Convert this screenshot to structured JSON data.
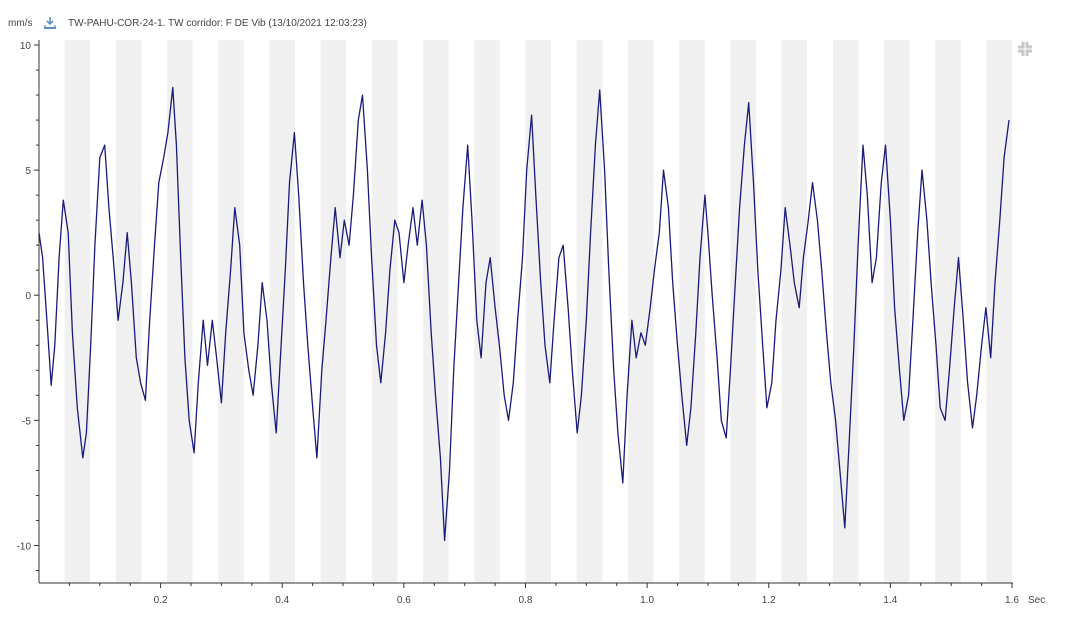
{
  "header": {
    "unit_label": "mm/s",
    "download_icon": "download-icon",
    "expand_icon": "expand-icon",
    "title": "TW-PAHU-COR-24-1.  TW corridor: F DE Vib (13/10/2021 12:03:23)"
  },
  "chart_data": {
    "type": "line",
    "title": "TW-PAHU-COR-24-1.  TW corridor: F DE Vib (13/10/2021 12:03:23)",
    "xlabel": "Sec",
    "ylabel": "mm/s",
    "xlim": [
      0,
      1.6
    ],
    "ylim": [
      -11.5,
      10.2
    ],
    "x_ticks": [
      0.2,
      0.4,
      0.6,
      0.8,
      1.0,
      1.2,
      1.4,
      1.6
    ],
    "x_tick_labels": [
      "0.2",
      "0.4",
      "0.6",
      "0.8",
      "1.0",
      "1.2",
      "1.4",
      "1.6"
    ],
    "y_ticks": [
      10,
      5,
      0,
      -5,
      -10
    ],
    "y_tick_labels": [
      "10",
      "5",
      "0",
      "-5",
      "-10"
    ],
    "line_color": "#1a1a7a",
    "band_color": "#f0f0f0",
    "grid": false,
    "background_bands": true,
    "series": [
      {
        "name": "",
        "points": [
          [
            0.0,
            2.5
          ],
          [
            0.006,
            1.5
          ],
          [
            0.013,
            -1.0
          ],
          [
            0.02,
            -3.6
          ],
          [
            0.026,
            -2.0
          ],
          [
            0.033,
            1.5
          ],
          [
            0.04,
            3.8
          ],
          [
            0.048,
            2.5
          ],
          [
            0.055,
            -1.5
          ],
          [
            0.063,
            -4.5
          ],
          [
            0.072,
            -6.5
          ],
          [
            0.078,
            -5.5
          ],
          [
            0.085,
            -2.0
          ],
          [
            0.092,
            2.0
          ],
          [
            0.1,
            5.5
          ],
          [
            0.108,
            6.0
          ],
          [
            0.115,
            3.5
          ],
          [
            0.122,
            1.5
          ],
          [
            0.13,
            -1.0
          ],
          [
            0.138,
            0.5
          ],
          [
            0.145,
            2.5
          ],
          [
            0.152,
            0.5
          ],
          [
            0.16,
            -2.5
          ],
          [
            0.167,
            -3.5
          ],
          [
            0.175,
            -4.2
          ],
          [
            0.182,
            -1.0
          ],
          [
            0.19,
            2.0
          ],
          [
            0.197,
            4.5
          ],
          [
            0.205,
            5.5
          ],
          [
            0.212,
            6.5
          ],
          [
            0.22,
            8.3
          ],
          [
            0.226,
            6.0
          ],
          [
            0.233,
            1.5
          ],
          [
            0.24,
            -2.5
          ],
          [
            0.247,
            -5.0
          ],
          [
            0.255,
            -6.3
          ],
          [
            0.262,
            -3.5
          ],
          [
            0.27,
            -1.0
          ],
          [
            0.277,
            -2.8
          ],
          [
            0.285,
            -1.0
          ],
          [
            0.292,
            -2.5
          ],
          [
            0.3,
            -4.3
          ],
          [
            0.307,
            -1.5
          ],
          [
            0.315,
            1.0
          ],
          [
            0.322,
            3.5
          ],
          [
            0.33,
            2.0
          ],
          [
            0.337,
            -1.5
          ],
          [
            0.345,
            -3.0
          ],
          [
            0.352,
            -4.0
          ],
          [
            0.36,
            -2.0
          ],
          [
            0.367,
            0.5
          ],
          [
            0.375,
            -1.0
          ],
          [
            0.382,
            -3.5
          ],
          [
            0.39,
            -5.5
          ],
          [
            0.397,
            -2.5
          ],
          [
            0.405,
            1.0
          ],
          [
            0.412,
            4.5
          ],
          [
            0.42,
            6.5
          ],
          [
            0.427,
            4.0
          ],
          [
            0.435,
            0.5
          ],
          [
            0.442,
            -2.0
          ],
          [
            0.45,
            -4.5
          ],
          [
            0.457,
            -6.5
          ],
          [
            0.465,
            -3.0
          ],
          [
            0.472,
            -1.0
          ],
          [
            0.48,
            1.5
          ],
          [
            0.487,
            3.5
          ],
          [
            0.495,
            1.5
          ],
          [
            0.502,
            3.0
          ],
          [
            0.51,
            2.0
          ],
          [
            0.517,
            4.0
          ],
          [
            0.525,
            7.0
          ],
          [
            0.532,
            8.0
          ],
          [
            0.54,
            5.0
          ],
          [
            0.547,
            1.5
          ],
          [
            0.555,
            -2.0
          ],
          [
            0.562,
            -3.5
          ],
          [
            0.57,
            -1.5
          ],
          [
            0.577,
            1.0
          ],
          [
            0.585,
            3.0
          ],
          [
            0.592,
            2.5
          ],
          [
            0.6,
            0.5
          ],
          [
            0.607,
            2.0
          ],
          [
            0.615,
            3.5
          ],
          [
            0.622,
            2.0
          ],
          [
            0.63,
            3.8
          ],
          [
            0.637,
            2.0
          ],
          [
            0.645,
            -1.5
          ],
          [
            0.652,
            -4.0
          ],
          [
            0.66,
            -6.5
          ],
          [
            0.667,
            -9.8
          ],
          [
            0.675,
            -7.0
          ],
          [
            0.682,
            -3.0
          ],
          [
            0.69,
            0.5
          ],
          [
            0.697,
            3.5
          ],
          [
            0.705,
            6.0
          ],
          [
            0.712,
            3.0
          ],
          [
            0.72,
            -1.0
          ],
          [
            0.727,
            -2.5
          ],
          [
            0.735,
            0.5
          ],
          [
            0.742,
            1.5
          ],
          [
            0.75,
            -0.5
          ],
          [
            0.757,
            -2.0
          ],
          [
            0.765,
            -4.0
          ],
          [
            0.772,
            -5.0
          ],
          [
            0.78,
            -3.5
          ],
          [
            0.787,
            -1.0
          ],
          [
            0.795,
            1.5
          ],
          [
            0.802,
            5.0
          ],
          [
            0.81,
            7.2
          ],
          [
            0.817,
            4.0
          ],
          [
            0.825,
            0.5
          ],
          [
            0.832,
            -2.0
          ],
          [
            0.84,
            -3.5
          ],
          [
            0.847,
            -1.0
          ],
          [
            0.855,
            1.5
          ],
          [
            0.862,
            2.0
          ],
          [
            0.87,
            -0.5
          ],
          [
            0.877,
            -3.0
          ],
          [
            0.885,
            -5.5
          ],
          [
            0.892,
            -4.0
          ],
          [
            0.9,
            -1.0
          ],
          [
            0.907,
            2.5
          ],
          [
            0.915,
            6.0
          ],
          [
            0.922,
            8.2
          ],
          [
            0.93,
            5.0
          ],
          [
            0.937,
            1.0
          ],
          [
            0.945,
            -3.0
          ],
          [
            0.952,
            -5.5
          ],
          [
            0.96,
            -7.5
          ],
          [
            0.967,
            -4.0
          ],
          [
            0.975,
            -1.0
          ],
          [
            0.982,
            -2.5
          ],
          [
            0.99,
            -1.5
          ],
          [
            0.997,
            -2.0
          ],
          [
            1.005,
            -0.5
          ],
          [
            1.012,
            1.0
          ],
          [
            1.02,
            2.5
          ],
          [
            1.027,
            5.0
          ],
          [
            1.035,
            3.5
          ],
          [
            1.042,
            0.5
          ],
          [
            1.05,
            -2.0
          ],
          [
            1.057,
            -4.0
          ],
          [
            1.065,
            -6.0
          ],
          [
            1.072,
            -4.5
          ],
          [
            1.08,
            -1.5
          ],
          [
            1.087,
            1.5
          ],
          [
            1.095,
            4.0
          ],
          [
            1.1,
            2.5
          ],
          [
            1.107,
            0.0
          ],
          [
            1.115,
            -2.5
          ],
          [
            1.122,
            -5.0
          ],
          [
            1.13,
            -5.7
          ],
          [
            1.137,
            -3.0
          ],
          [
            1.145,
            0.5
          ],
          [
            1.152,
            3.5
          ],
          [
            1.16,
            6.0
          ],
          [
            1.167,
            7.7
          ],
          [
            1.175,
            4.5
          ],
          [
            1.182,
            1.0
          ],
          [
            1.19,
            -2.0
          ],
          [
            1.197,
            -4.5
          ],
          [
            1.205,
            -3.5
          ],
          [
            1.212,
            -1.0
          ],
          [
            1.22,
            1.0
          ],
          [
            1.227,
            3.5
          ],
          [
            1.235,
            2.0
          ],
          [
            1.242,
            0.5
          ],
          [
            1.25,
            -0.5
          ],
          [
            1.257,
            1.5
          ],
          [
            1.265,
            3.0
          ],
          [
            1.272,
            4.5
          ],
          [
            1.28,
            3.0
          ],
          [
            1.287,
            1.0
          ],
          [
            1.295,
            -1.5
          ],
          [
            1.302,
            -3.5
          ],
          [
            1.31,
            -5.0
          ],
          [
            1.317,
            -7.0
          ],
          [
            1.325,
            -9.3
          ],
          [
            1.332,
            -6.0
          ],
          [
            1.34,
            -2.0
          ],
          [
            1.347,
            2.0
          ],
          [
            1.355,
            6.0
          ],
          [
            1.362,
            4.0
          ],
          [
            1.37,
            0.5
          ],
          [
            1.377,
            1.5
          ],
          [
            1.385,
            4.5
          ],
          [
            1.392,
            6.0
          ],
          [
            1.4,
            3.0
          ],
          [
            1.407,
            -0.5
          ],
          [
            1.415,
            -3.0
          ],
          [
            1.422,
            -5.0
          ],
          [
            1.43,
            -4.0
          ],
          [
            1.437,
            -1.0
          ],
          [
            1.445,
            2.5
          ],
          [
            1.452,
            5.0
          ],
          [
            1.46,
            3.0
          ],
          [
            1.467,
            0.5
          ],
          [
            1.475,
            -2.0
          ],
          [
            1.482,
            -4.5
          ],
          [
            1.49,
            -5.0
          ],
          [
            1.497,
            -3.0
          ],
          [
            1.505,
            -0.5
          ],
          [
            1.512,
            1.5
          ],
          [
            1.52,
            -1.0
          ],
          [
            1.527,
            -3.5
          ],
          [
            1.535,
            -5.3
          ],
          [
            1.542,
            -4.0
          ],
          [
            1.55,
            -2.0
          ],
          [
            1.557,
            -0.5
          ],
          [
            1.565,
            -2.5
          ],
          [
            1.572,
            0.5
          ],
          [
            1.58,
            3.0
          ],
          [
            1.587,
            5.5
          ],
          [
            1.595,
            7.0
          ]
        ]
      }
    ]
  }
}
